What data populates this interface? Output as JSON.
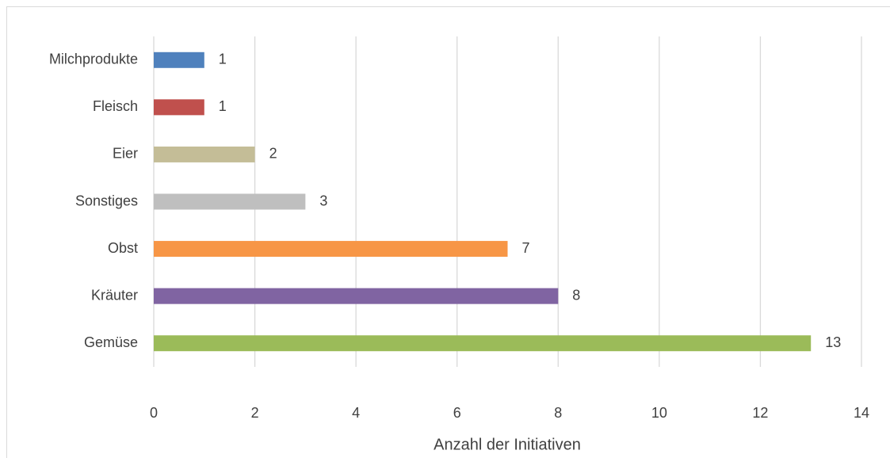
{
  "chart_data": {
    "type": "barh",
    "categories": [
      "Milchprodukte",
      "Fleisch",
      "Eier",
      "Sonstiges",
      "Obst",
      "Kräuter",
      "Gemüse"
    ],
    "values": [
      1,
      1,
      2,
      3,
      7,
      8,
      13
    ],
    "colors": [
      "#4f81bd",
      "#c0504d",
      "#c4bd97",
      "#bfbfbf",
      "#f79646",
      "#8064a2",
      "#9bbb59"
    ],
    "xlabel": "Anzahl der Initiativen",
    "xlim": [
      0,
      14
    ],
    "xticks": [
      0,
      2,
      4,
      6,
      8,
      10,
      12,
      14
    ],
    "grid": true
  }
}
